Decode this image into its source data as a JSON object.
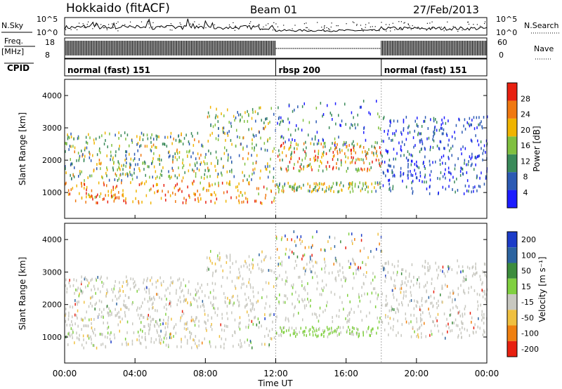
{
  "header": {
    "station": "Hokkaido (fitACF)",
    "beam": "Beam 01",
    "date": "27/Feb/2013"
  },
  "chart_data": [
    {
      "type": "line",
      "panel": "noise",
      "left_label": "N.Sky",
      "right_label": "N.Search",
      "left_ticks": [
        "10^5",
        "10^0"
      ],
      "right_ticks": [
        "10^5",
        "10^0"
      ]
    },
    {
      "type": "line",
      "panel": "frequency",
      "left_label": "Freq.",
      "left_unit": "[MHz]",
      "right_label": "Nave",
      "left_ticks": [
        "18",
        "8"
      ],
      "right_ticks": [
        "60",
        "0"
      ],
      "segments": [
        {
          "start_hour": 0,
          "end_hour": 12,
          "style": "dense"
        },
        {
          "start_hour": 12,
          "end_hour": 18,
          "style": "sparse"
        },
        {
          "start_hour": 18,
          "end_hour": 24,
          "style": "dense"
        }
      ]
    },
    {
      "type": "table",
      "panel": "cpid",
      "label": "CPID",
      "modes": [
        {
          "start_hour": 0,
          "end_hour": 12,
          "name": "normal (fast) 151"
        },
        {
          "start_hour": 12,
          "end_hour": 18,
          "name": "rbsp 200"
        },
        {
          "start_hour": 18,
          "end_hour": 24,
          "name": "normal (fast) 151"
        }
      ]
    },
    {
      "type": "heatmap",
      "panel": "power",
      "ylabel": "Slant Range [km]",
      "yticks": [
        1000,
        2000,
        3000,
        4000
      ],
      "ylim": [
        200,
        4500
      ],
      "colorbar_label": "Power [dB]",
      "colorbar_ticks": [
        4,
        8,
        12,
        16,
        20,
        24,
        28
      ],
      "colorbar_range": [
        0,
        32
      ],
      "colorbar_colors": [
        "#1c1cff",
        "#2c5ab4",
        "#3a8a5a",
        "#80c040",
        "#f0b400",
        "#f07810",
        "#e82010"
      ]
    },
    {
      "type": "heatmap",
      "panel": "velocity",
      "ylabel": "Slant Range [km]",
      "yticks": [
        1000,
        2000,
        3000,
        4000
      ],
      "ylim": [
        200,
        4500
      ],
      "colorbar_label": "Velocity [m s⁻¹]",
      "colorbar_ticks": [
        200,
        100,
        50,
        15,
        -15,
        -50,
        -100,
        -200
      ],
      "colorbar_colors": [
        "#1c3cc8",
        "#2c64a0",
        "#3c8c3c",
        "#80d040",
        "#c8c8c0",
        "#f0c040",
        "#f08010",
        "#e82010"
      ]
    },
    {
      "type": "axis",
      "panel": "time",
      "xlabel": "Time UT",
      "xticks": [
        "00:00",
        "04:00",
        "08:00",
        "12:00",
        "16:00",
        "20:00",
        "00:00"
      ],
      "xlim_hours": [
        0,
        24
      ]
    }
  ]
}
